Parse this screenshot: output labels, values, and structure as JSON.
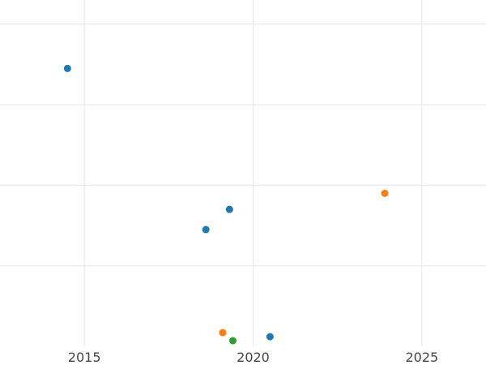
{
  "chart_data": {
    "type": "scatter",
    "title": "",
    "xlabel": "",
    "ylabel": "",
    "xlim": [
      2012.5,
      2026.9
    ],
    "ylim": [
      0,
      4.3
    ],
    "x_ticks": [
      2015,
      2020,
      2025
    ],
    "x_tick_labels": [
      "2015",
      "2020",
      "2025"
    ],
    "y_gridlines": [
      1,
      2,
      3,
      4
    ],
    "grid": true,
    "series": [
      {
        "color": "#1f77b4",
        "points": [
          {
            "x": 2014.5,
            "y": 3.45
          },
          {
            "x": 2018.6,
            "y": 1.45
          },
          {
            "x": 2019.3,
            "y": 1.7
          },
          {
            "x": 2020.5,
            "y": 0.12
          }
        ]
      },
      {
        "color": "#ff7f0e",
        "points": [
          {
            "x": 2019.1,
            "y": 0.17
          },
          {
            "x": 2023.9,
            "y": 1.9
          }
        ]
      },
      {
        "color": "#2ca02c",
        "points": [
          {
            "x": 2019.4,
            "y": 0.07
          }
        ]
      }
    ]
  }
}
